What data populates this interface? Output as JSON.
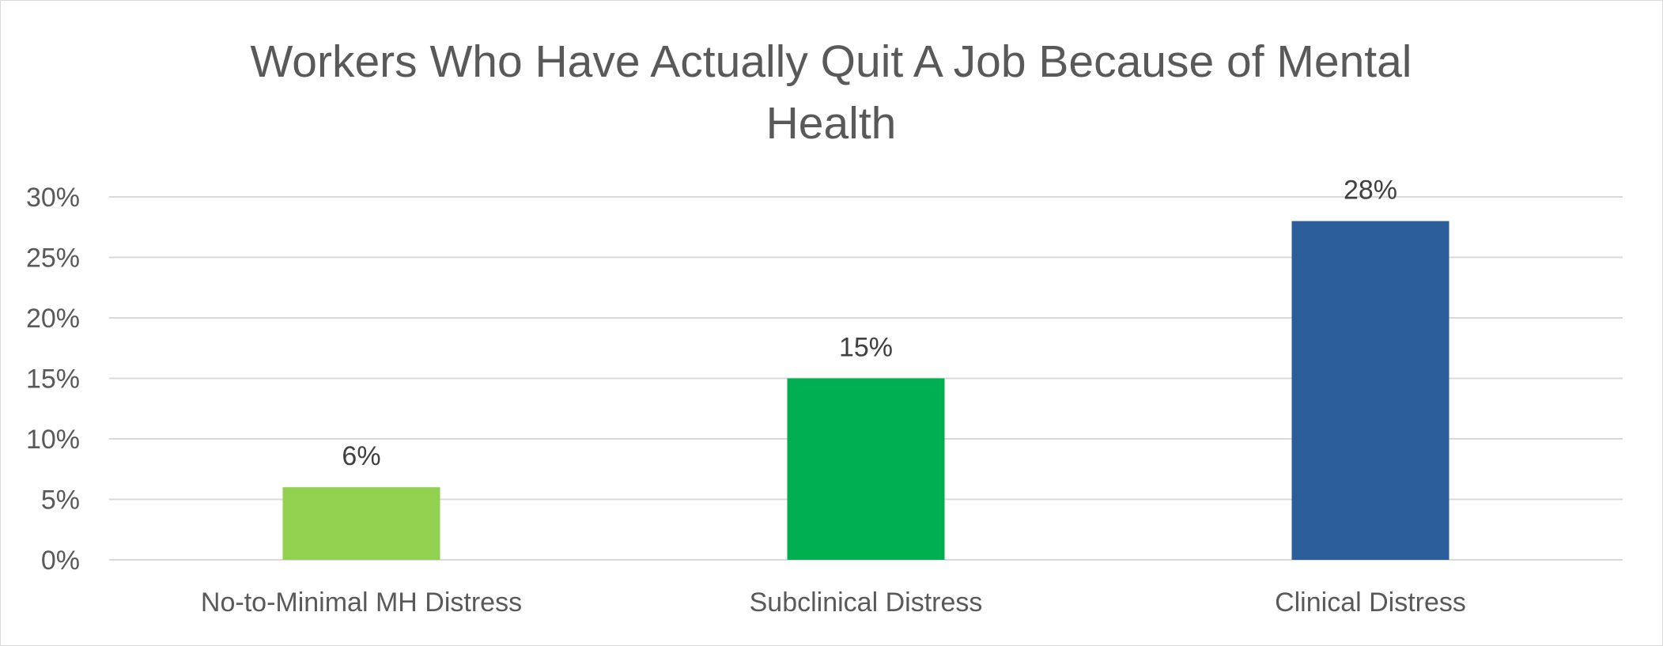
{
  "chart_data": {
    "type": "bar",
    "title": "Workers Who Have Actually Quit A Job Because of Mental Health",
    "categories": [
      "No-to-Minimal MH Distress",
      "Subclinical Distress",
      "Clinical Distress"
    ],
    "values": [
      6,
      15,
      28
    ],
    "value_labels": [
      "6%",
      "15%",
      "28%"
    ],
    "colors": [
      "#92d050",
      "#00b050",
      "#2a5d9a"
    ],
    "yticks": [
      "0%",
      "5%",
      "10%",
      "15%",
      "20%",
      "25%",
      "30%"
    ],
    "ytick_values": [
      0,
      5,
      10,
      15,
      20,
      25,
      30
    ],
    "ylim": [
      0,
      30
    ],
    "grid": true,
    "legend": "none",
    "xlabel": "",
    "ylabel": ""
  },
  "colors": {
    "gridline": "#d9d9d9",
    "text": "#595959",
    "data_label": "#404040"
  }
}
